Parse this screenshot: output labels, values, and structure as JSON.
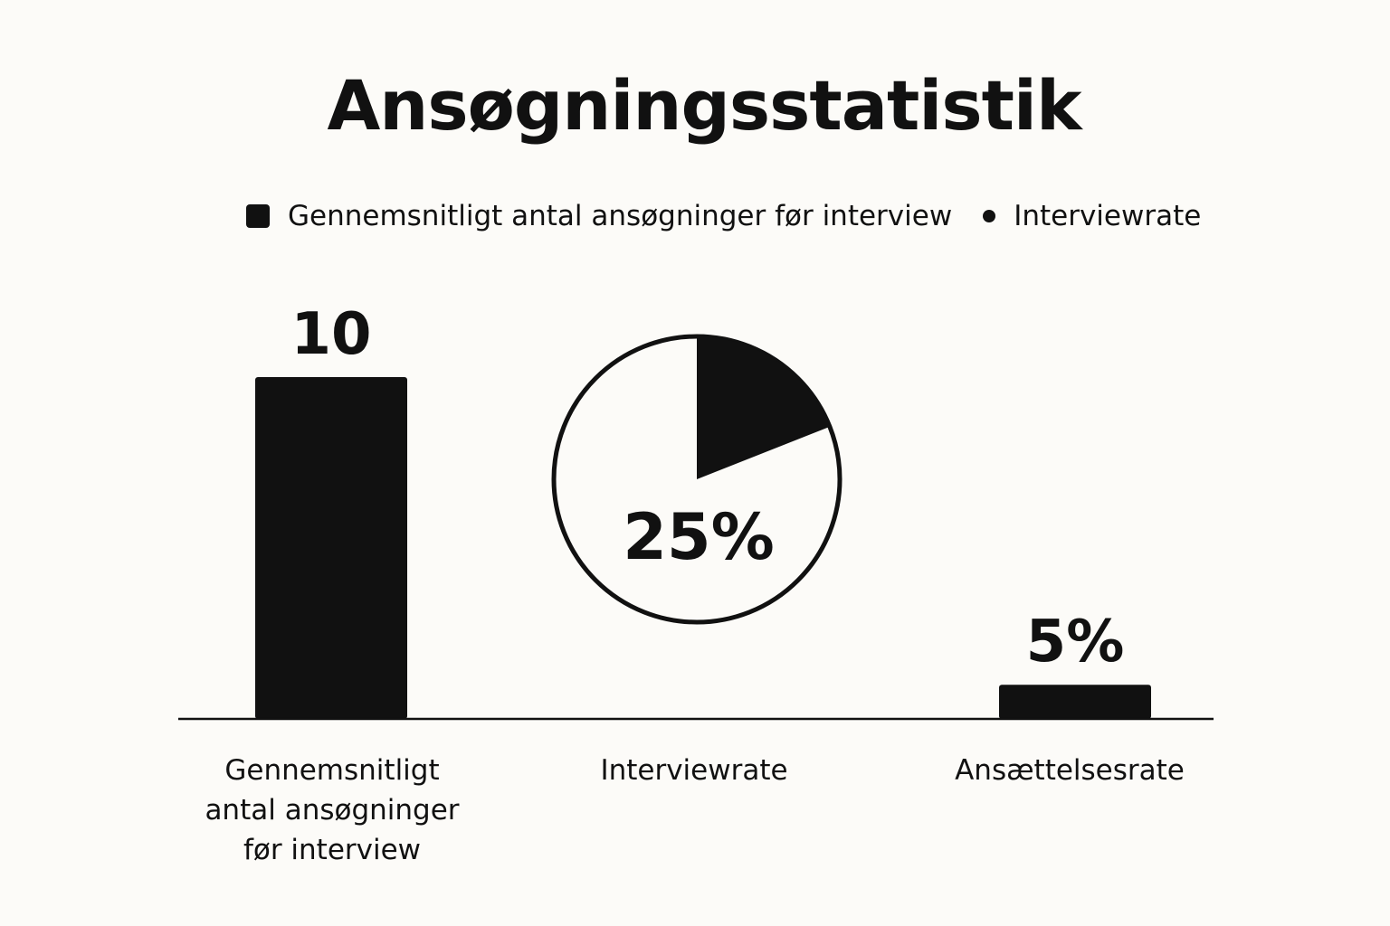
{
  "chart_data": {
    "type": "bar",
    "title": "Ansøgningsstatistik",
    "legend": {
      "placement": "top",
      "entries": [
        {
          "label": "Gennemsnitligt antal ansøgninger før interview",
          "marker": "square"
        },
        {
          "label": "Interviewrate",
          "marker": "dot"
        }
      ]
    },
    "categories": [
      "Gennemsnitligt antal ansøgninger før interview",
      "Interviewrate",
      "Ansættelsesrate"
    ],
    "bars": [
      {
        "category": "Gennemsnitligt antal ansøgninger før interview",
        "value": 10,
        "label": "10"
      },
      {
        "category": "Ansættelsesrate",
        "value": 5,
        "label": "5%"
      }
    ],
    "pie": {
      "category": "Interviewrate",
      "value": 25,
      "label": "25%"
    },
    "grid": false,
    "colors": {
      "ink": "#111111",
      "background": "#fcfbf8"
    }
  }
}
